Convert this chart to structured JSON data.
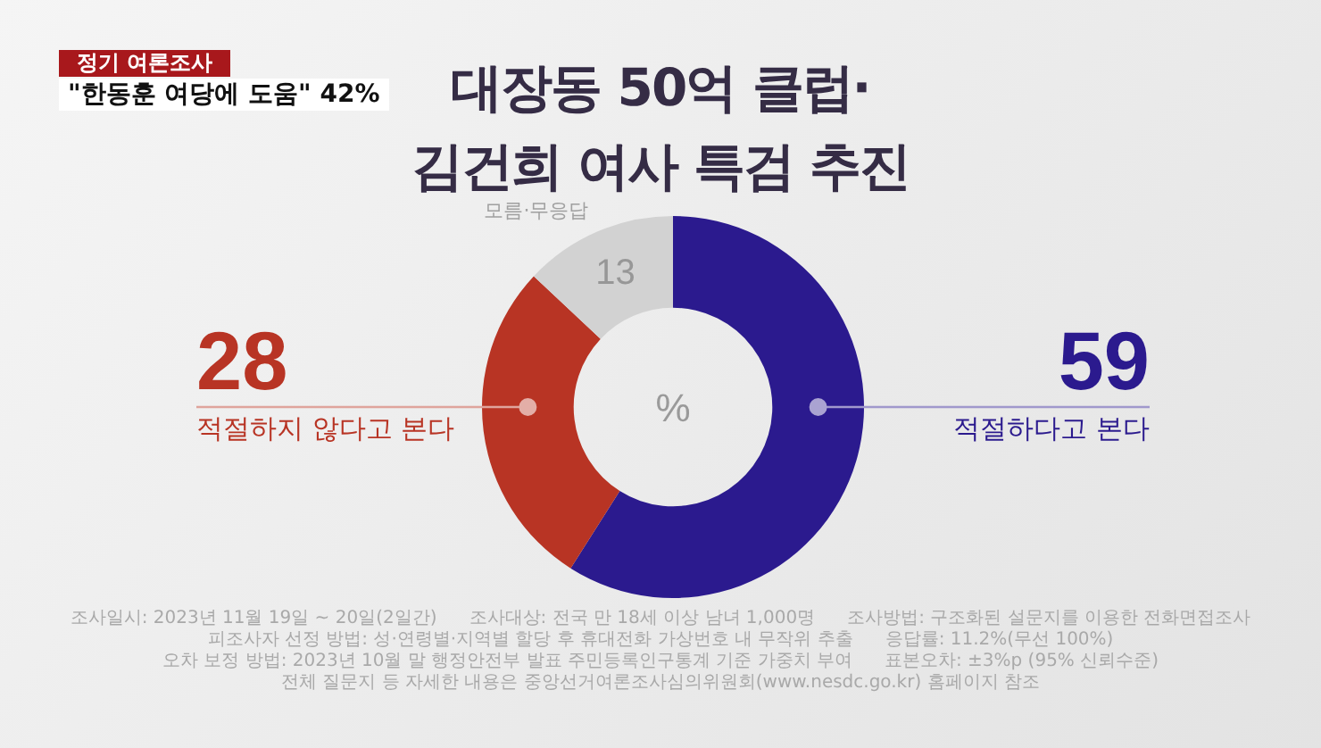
{
  "chart_data": {
    "type": "donut",
    "title": "대장동 50억 클럽·\n김건희 여사 특검 추진",
    "categories": [
      "적절하다고 본다",
      "적절하지 않다고 본다",
      "모름·무응답"
    ],
    "values": [
      59,
      28,
      13
    ],
    "colors": [
      "#2b1a8e",
      "#b83424",
      "#d2d2d2"
    ],
    "data_labels": true,
    "annotations": [
      "정기 여론조사",
      "\"한동훈 여당에 도움\" 42%",
      "%",
      "조사일시: 2023년 11월 19일 ~ 20일(2일간)",
      "조사대상: 전국 만 18세 이상 남녀 1,000명",
      "조사방법: 구조화된 설문지를 이용한 전화면접조사",
      "피조사자 선정 방법: 성·연령별·지역별 할당 후 휴대전화 가상번호 내 무작위 추출",
      "응답률: 11.2%(무선 100%)",
      "오차 보정 방법: 2023년 10월 말 행정안전부 발표 주민등록인구통계 기준 가중치 부여",
      "표본오차: ±3%p (95% 신뢰수준)",
      "전체 질문지 등 자세한 내용은 중앙선거여론조사심의위원회(www.nesdc.go.kr) 홈페이지 참조"
    ]
  }
}
